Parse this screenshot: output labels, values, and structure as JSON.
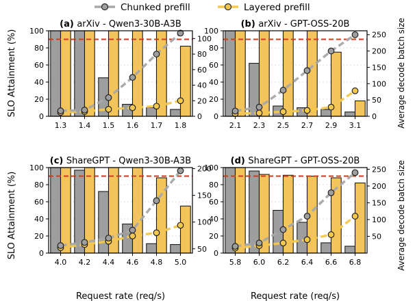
{
  "legend": {
    "series_a": "Chunked prefill",
    "series_b": "Layered prefill"
  },
  "axis_labels": {
    "y_left": "SLO Attainment (%)",
    "y_right": "Average decode batch size",
    "x": "Request rate (req/s)"
  },
  "colors": {
    "chunked_bar": "#9e9e9e",
    "layered_bar": "#f2c45a",
    "chunked_line": "#a8a8a8",
    "layered_line": "#f3c84e",
    "slo_line": "#d03a1f"
  },
  "chart_data": [
    {
      "type": "bar",
      "panel_tag": "(a)",
      "title": "arXiv - Qwen3-30B-A3B",
      "categories": [
        "1.3",
        "1.4",
        "1.5",
        "1.6",
        "1.7",
        "1.8"
      ],
      "ylim": [
        0,
        100
      ],
      "yticks": [
        0,
        20,
        40,
        60,
        80,
        100
      ],
      "y2lim": [
        0,
        110
      ],
      "y2ticks": [
        0,
        20,
        40,
        60,
        80,
        100
      ],
      "slo_target": 90,
      "series": [
        {
          "name": "Chunked prefill",
          "slo": [
            100,
            100,
            45,
            14,
            10,
            8
          ],
          "batch": [
            7,
            8,
            24,
            50,
            80,
            107
          ]
        },
        {
          "name": "Layered prefill",
          "slo": [
            100,
            100,
            100,
            100,
            100,
            82
          ],
          "batch": [
            5,
            6,
            9,
            11,
            13,
            20
          ]
        }
      ]
    },
    {
      "type": "bar",
      "panel_tag": "(b)",
      "title": "arXiv - GPT-OSS-20B",
      "categories": [
        "2.1",
        "2.3",
        "2.5",
        "2.7",
        "2.9",
        "3.1"
      ],
      "ylim": [
        0,
        100
      ],
      "yticks": [
        0,
        20,
        40,
        60,
        80,
        100
      ],
      "y2lim": [
        0,
        262
      ],
      "y2ticks": [
        0,
        50,
        100,
        150,
        200,
        250
      ],
      "slo_target": 90,
      "series": [
        {
          "name": "Chunked prefill",
          "slo": [
            100,
            62,
            12,
            10,
            8,
            5
          ],
          "batch": [
            16,
            28,
            80,
            140,
            200,
            250
          ]
        },
        {
          "name": "Layered prefill",
          "slo": [
            100,
            100,
            100,
            100,
            75,
            18
          ],
          "batch": [
            8,
            10,
            14,
            18,
            28,
            78
          ]
        }
      ]
    },
    {
      "type": "bar",
      "panel_tag": "(c)",
      "title": "ShareGPT - Qwen3-30B-A3B",
      "categories": [
        "4.0",
        "4.2",
        "4.4",
        "4.6",
        "4.8",
        "5.0"
      ],
      "ylim": [
        0,
        100
      ],
      "yticks": [
        0,
        20,
        40,
        60,
        80,
        100
      ],
      "y2lim": [
        42,
        202
      ],
      "y2ticks": [
        50,
        100,
        150,
        200
      ],
      "slo_target": 90,
      "series": [
        {
          "name": "Chunked prefill",
          "slo": [
            100,
            97,
            72,
            34,
            11,
            10
          ],
          "batch": [
            56,
            62,
            70,
            85,
            140,
            196
          ]
        },
        {
          "name": "Layered prefill",
          "slo": [
            100,
            100,
            100,
            100,
            88,
            55
          ],
          "batch": [
            52,
            58,
            64,
            74,
            80,
            94
          ]
        }
      ]
    },
    {
      "type": "bar",
      "panel_tag": "(d)",
      "title": "ShareGPT - GPT-OSS-20B",
      "categories": [
        "5.8",
        "6.0",
        "6.2",
        "6.4",
        "6.6",
        "6.8"
      ],
      "ylim": [
        0,
        100
      ],
      "yticks": [
        0,
        20,
        40,
        60,
        80,
        100
      ],
      "y2lim": [
        0,
        255
      ],
      "y2ticks": [
        50,
        100,
        150,
        200,
        250
      ],
      "slo_target": 90,
      "series": [
        {
          "name": "Chunked prefill",
          "slo": [
            100,
            96,
            50,
            36,
            12,
            8
          ],
          "batch": [
            20,
            30,
            70,
            110,
            180,
            240
          ]
        },
        {
          "name": "Layered prefill",
          "slo": [
            100,
            92,
            91,
            90,
            88,
            82
          ],
          "batch": [
            15,
            22,
            30,
            40,
            55,
            110
          ]
        }
      ]
    }
  ]
}
